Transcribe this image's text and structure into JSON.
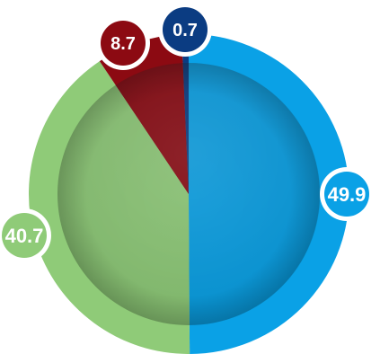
{
  "chart_data": {
    "type": "pie",
    "slices": [
      {
        "value": 49.9,
        "label": "49.9",
        "color": "#0aa1e6"
      },
      {
        "value": 40.7,
        "label": "40.7",
        "color": "#8fcb78"
      },
      {
        "value": 8.7,
        "label": "8.7",
        "color": "#8c0a12"
      },
      {
        "value": 0.7,
        "label": "0.7",
        "color": "#0b3c82"
      }
    ],
    "start": "top",
    "direction": "clockwise",
    "labels_shown": "values in circular badges outside the ring",
    "legend": "none",
    "title": ""
  }
}
